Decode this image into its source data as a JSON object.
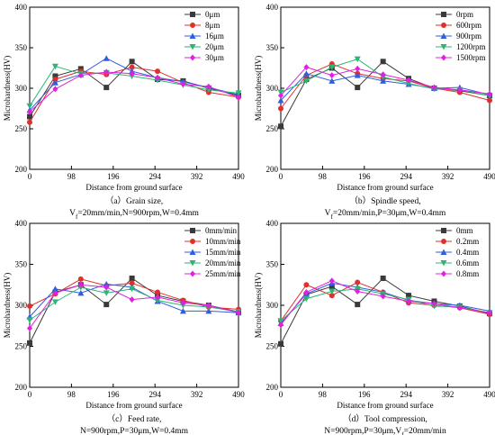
{
  "figure": {
    "panels": [
      {
        "caption": "（a）Grain size,",
        "conditions": {
          "pre": "V",
          "sub": "f",
          "post": "=20mm/min,N=900rpm,W=0.4mm"
        }
      },
      {
        "caption": "（b）Spindle speed,",
        "conditions": {
          "pre": "V",
          "sub": "f",
          "post": "=20mm/min,P=30μm,W=0.4mm"
        }
      },
      {
        "caption": "（c）Feed rate,",
        "conditions": {
          "pre": "N=900rpm,P=30μm,W=0.4mm",
          "sub": "",
          "post": ""
        }
      },
      {
        "caption": "（d）Tool compression,",
        "conditions": {
          "pre": "N=900rpm,P=30μm,V",
          "sub": "f",
          "post": "=20mm/min"
        }
      }
    ]
  },
  "chart_data": [
    {
      "type": "line",
      "xlabel": "Distance from ground surface",
      "ylabel": "Microhardness(HV)",
      "x": [
        0,
        60,
        120,
        180,
        240,
        300,
        360,
        420,
        490
      ],
      "xticks": [
        0,
        98,
        196,
        294,
        392,
        490
      ],
      "xlim": [
        0,
        490
      ],
      "ylim": [
        200,
        400
      ],
      "yticks": [
        200,
        250,
        300,
        350,
        400
      ],
      "grid": false,
      "legend_position": "top-right",
      "series": [
        {
          "name": "0μm",
          "color": "#3a3a3a",
          "marker": "square",
          "values": [
            265,
            315,
            324,
            301,
            333,
            311,
            309,
            300,
            291
          ]
        },
        {
          "name": "8μm",
          "color": "#e0302d",
          "marker": "circle",
          "values": [
            258,
            311,
            321,
            317,
            326,
            321,
            307,
            295,
            289
          ]
        },
        {
          "name": "16μm",
          "color": "#2f5fe0",
          "marker": "triangle-up",
          "values": [
            273,
            307,
            317,
            337,
            321,
            313,
            308,
            301,
            292
          ]
        },
        {
          "name": "20μm",
          "color": "#2bb673",
          "marker": "triangle-down",
          "values": [
            278,
            327,
            318,
            319,
            315,
            310,
            304,
            298,
            294
          ]
        },
        {
          "name": "30μm",
          "color": "#e020e0",
          "marker": "diamond",
          "values": [
            271,
            299,
            316,
            320,
            318,
            313,
            305,
            302,
            289
          ]
        }
      ]
    },
    {
      "type": "line",
      "xlabel": "Distance from ground surface",
      "ylabel": "Microhardness(HV)",
      "x": [
        0,
        60,
        120,
        180,
        240,
        300,
        360,
        420,
        490
      ],
      "xticks": [
        0,
        98,
        196,
        294,
        392,
        490
      ],
      "xlim": [
        0,
        490
      ],
      "ylim": [
        200,
        400
      ],
      "yticks": [
        200,
        250,
        300,
        350,
        400
      ],
      "grid": false,
      "legend_position": "top-right",
      "series": [
        {
          "name": "0rpm",
          "color": "#3a3a3a",
          "marker": "square",
          "values": [
            253,
            311,
            325,
            301,
            333,
            312,
            300,
            297,
            291
          ]
        },
        {
          "name": "600rpm",
          "color": "#e0302d",
          "marker": "circle",
          "values": [
            275,
            316,
            330,
            318,
            312,
            309,
            300,
            295,
            285
          ]
        },
        {
          "name": "900rpm",
          "color": "#2f5fe0",
          "marker": "triangle-up",
          "values": [
            285,
            318,
            309,
            316,
            309,
            305,
            300,
            301,
            292
          ]
        },
        {
          "name": "1200rpm",
          "color": "#2bb673",
          "marker": "triangle-down",
          "values": [
            295,
            309,
            326,
            336,
            314,
            306,
            299,
            298,
            291
          ]
        },
        {
          "name": "1500rpm",
          "color": "#e020e0",
          "marker": "diamond",
          "values": [
            291,
            326,
            316,
            324,
            317,
            310,
            301,
            298,
            293
          ]
        }
      ]
    },
    {
      "type": "line",
      "xlabel": "Distance from ground surface",
      "ylabel": "Microhardness(HV)",
      "x": [
        0,
        60,
        120,
        180,
        240,
        300,
        360,
        420,
        490
      ],
      "xticks": [
        0,
        98,
        196,
        294,
        392,
        490
      ],
      "xlim": [
        0,
        490
      ],
      "ylim": [
        200,
        400
      ],
      "yticks": [
        200,
        250,
        300,
        350,
        400
      ],
      "grid": false,
      "legend_position": "top-right",
      "series": [
        {
          "name": "0mm/min",
          "color": "#3a3a3a",
          "marker": "square",
          "values": [
            254,
            316,
            325,
            301,
            333,
            312,
            305,
            300,
            292
          ]
        },
        {
          "name": "10mm/min",
          "color": "#e0302d",
          "marker": "circle",
          "values": [
            299,
            314,
            332,
            324,
            327,
            316,
            306,
            298,
            295
          ]
        },
        {
          "name": "15mm/min",
          "color": "#2f5fe0",
          "marker": "triangle-up",
          "values": [
            286,
            320,
            315,
            326,
            322,
            305,
            293,
            293,
            291
          ]
        },
        {
          "name": "20mm/min",
          "color": "#2bb673",
          "marker": "triangle-down",
          "values": [
            282,
            304,
            322,
            315,
            320,
            306,
            300,
            298,
            292
          ]
        },
        {
          "name": "25mm/min",
          "color": "#e020e0",
          "marker": "diamond",
          "values": [
            272,
            315,
            325,
            322,
            307,
            310,
            303,
            300,
            291
          ]
        }
      ]
    },
    {
      "type": "line",
      "xlabel": "Distance from ground surface",
      "ylabel": "Microhardness(HV)",
      "x": [
        0,
        60,
        120,
        180,
        240,
        300,
        360,
        420,
        490
      ],
      "xticks": [
        0,
        98,
        196,
        294,
        392,
        490
      ],
      "xlim": [
        0,
        490
      ],
      "ylim": [
        200,
        400
      ],
      "yticks": [
        200,
        250,
        300,
        350,
        400
      ],
      "grid": false,
      "legend_position": "top-right",
      "series": [
        {
          "name": "0mm",
          "color": "#3a3a3a",
          "marker": "square",
          "values": [
            253,
            313,
            323,
            301,
            333,
            312,
            305,
            299,
            290
          ]
        },
        {
          "name": "0.2mm",
          "color": "#e0302d",
          "marker": "circle",
          "values": [
            281,
            325,
            312,
            328,
            316,
            303,
            300,
            297,
            289
          ]
        },
        {
          "name": "0.4mm",
          "color": "#2f5fe0",
          "marker": "triangle-up",
          "values": [
            278,
            314,
            327,
            322,
            316,
            306,
            302,
            300,
            293
          ]
        },
        {
          "name": "0.6mm",
          "color": "#2bb673",
          "marker": "triangle-down",
          "values": [
            281,
            308,
            317,
            320,
            314,
            307,
            299,
            298,
            291
          ]
        },
        {
          "name": "0.8mm",
          "color": "#e020e0",
          "marker": "diamond",
          "values": [
            276,
            316,
            330,
            317,
            311,
            305,
            302,
            297,
            291
          ]
        }
      ]
    }
  ]
}
